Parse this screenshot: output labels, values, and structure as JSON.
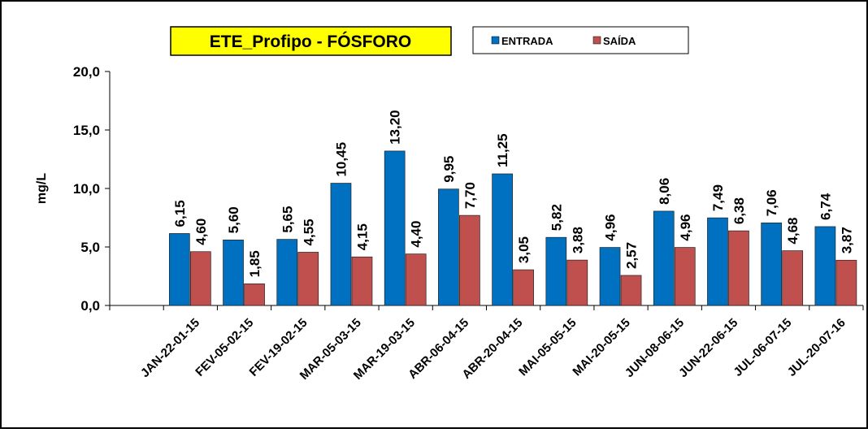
{
  "chart_data": {
    "type": "bar",
    "title": "ETE_Profipo - FÓSFORO",
    "y_label": "mg/L",
    "categories": [
      null,
      "JAN-22-01-15",
      "FEV-05-02-15",
      "FEV-19-02-15",
      "MAR-05-03-15",
      "MAR-19-03-15",
      "ABR-06-04-15",
      "ABR-20-04-15",
      "MAI-05-05-15",
      "MAI-20-05-15",
      "JUN-08-06-15",
      "JUN-22-06-15",
      "JUL-06-07-15",
      "JUL-20-07-16"
    ],
    "series": [
      {
        "name": "ENTRADA",
        "color": "#0070c0",
        "values": [
          null,
          6.15,
          5.6,
          5.65,
          10.45,
          13.2,
          9.95,
          11.25,
          5.82,
          4.96,
          8.06,
          7.49,
          7.06,
          6.74
        ],
        "value_labels": [
          null,
          "6,15",
          "5,60",
          "5,65",
          "10,45",
          "13,20",
          "9,95",
          "11,25",
          "5,82",
          "4,96",
          "8,06",
          "7,49",
          "7,06",
          "6,74"
        ]
      },
      {
        "name": "SAÍDA",
        "color": "#c0504d",
        "values": [
          null,
          4.6,
          1.85,
          4.55,
          4.15,
          4.4,
          7.7,
          3.05,
          3.88,
          2.57,
          4.96,
          6.38,
          4.68,
          3.87
        ],
        "value_labels": [
          null,
          "4,60",
          "1,85",
          "4,55",
          "4,15",
          "4,40",
          "7,70",
          "3,05",
          "3,88",
          "2,57",
          "4,96",
          "6,38",
          "4,68",
          "3,87"
        ]
      }
    ],
    "ylim": [
      0,
      20
    ],
    "yticks": [
      {
        "value": 0,
        "label": "0,0"
      },
      {
        "value": 5,
        "label": "5,0"
      },
      {
        "value": 10,
        "label": "10,0"
      },
      {
        "value": 15,
        "label": "15,0"
      },
      {
        "value": 20,
        "label": "20,0"
      }
    ],
    "grid": false
  }
}
